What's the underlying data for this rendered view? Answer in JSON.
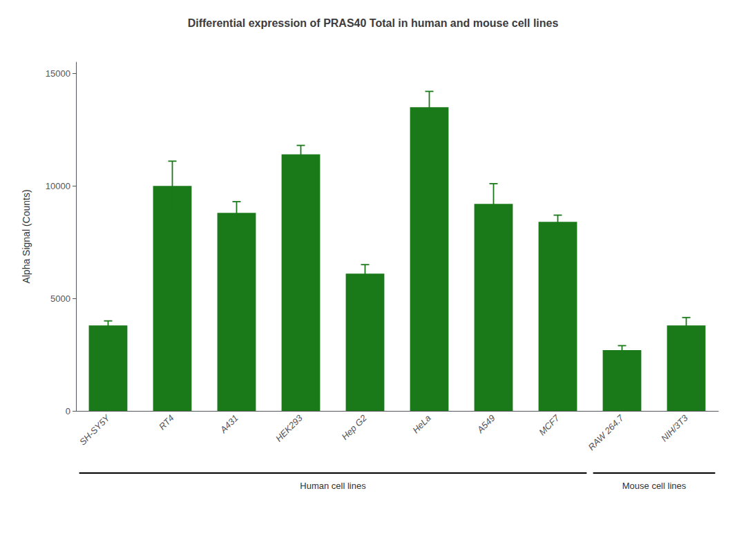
{
  "chart_data": {
    "type": "bar",
    "title": "Differential expression of PRAS40 Total in human and mouse cell lines",
    "ylabel": "Alpha Signal (Counts)",
    "categories": [
      "SH-SY5Y",
      "RT4",
      "A431",
      "HEK293",
      "Hep G2",
      "HeLa",
      "A549",
      "MCF7",
      "RAW 264.7",
      "NIH/3T3"
    ],
    "values": [
      3800,
      10000,
      8800,
      11400,
      6100,
      13500,
      9200,
      8400,
      2700,
      3800
    ],
    "errors": [
      200,
      1100,
      500,
      400,
      400,
      700,
      900,
      300,
      200,
      350
    ],
    "color": "#1a7a1a",
    "ylim": [
      0,
      15500
    ],
    "yticks": [
      0,
      5000,
      10000,
      15000
    ],
    "grid": false,
    "annotations": [
      {
        "text": "Human cell lines",
        "from": "SH-SY5Y",
        "to": "MCF7"
      },
      {
        "text": "Mouse cell lines",
        "from": "RAW 264.7",
        "to": "NIH/3T3"
      }
    ]
  }
}
